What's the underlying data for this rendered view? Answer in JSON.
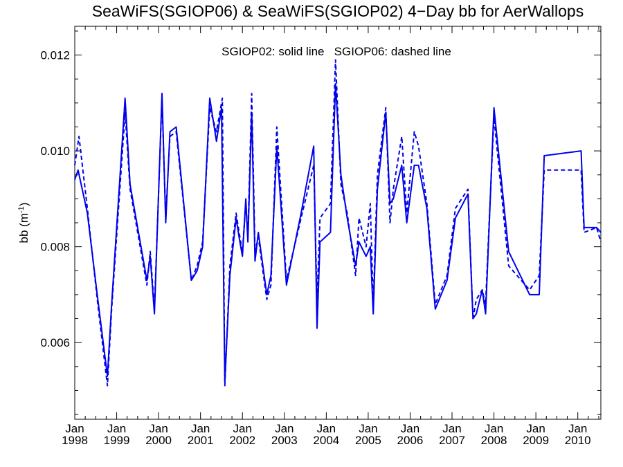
{
  "chart_data": {
    "type": "line",
    "title": "SeaWiFS(SGIOP06) & SeaWiFS(SGIOP02) 4−Day bb for AerWallops",
    "ylabel_main": "bb (m",
    "ylabel_sup": "-1",
    "ylabel_close": ")",
    "xlabel": "",
    "annotation": "SGIOP02: solid line   SGIOP06: dashed line",
    "xlim": [
      1998.0,
      2010.55
    ],
    "ylim": [
      0.0044,
      0.0126
    ],
    "y_ticks": [
      0.006,
      0.008,
      0.01,
      0.012
    ],
    "y_tick_labels": [
      "0.006",
      "0.008",
      "0.010",
      "0.012"
    ],
    "x_ticks": [
      1998,
      1999,
      2000,
      2001,
      2002,
      2003,
      2004,
      2005,
      2006,
      2007,
      2008,
      2009,
      2010
    ],
    "x_tick_month_labels": [
      "Jan",
      "Jan",
      "Jan",
      "Jan",
      "Jan",
      "Jan",
      "Jan",
      "Jan",
      "Jan",
      "Jan",
      "Jan",
      "Jan",
      "Jan"
    ],
    "x_tick_year_labels": [
      "1998",
      "1999",
      "2000",
      "2001",
      "2002",
      "2003",
      "2004",
      "2005",
      "2006",
      "2007",
      "2008",
      "2009",
      "2010"
    ],
    "line_color": "#0000ee",
    "series": [
      {
        "style": "solid",
        "x": [
          1998.0,
          1998.08,
          1998.3,
          1998.55,
          1998.78,
          1998.88,
          1999.2,
          1999.32,
          1999.72,
          1999.8,
          1999.9,
          2000.08,
          2000.17,
          2000.27,
          2000.42,
          2000.78,
          2000.92,
          2001.05,
          2001.22,
          2001.38,
          2001.5,
          2001.58,
          2001.7,
          2001.85,
          2001.92,
          2002.0,
          2002.08,
          2002.13,
          2002.22,
          2002.3,
          2002.38,
          2002.58,
          2002.68,
          2002.82,
          2003.05,
          2003.4,
          2003.7,
          2003.78,
          2003.85,
          2004.1,
          2004.22,
          2004.35,
          2004.5,
          2004.7,
          2004.78,
          2004.95,
          2005.05,
          2005.12,
          2005.22,
          2005.42,
          2005.52,
          2005.6,
          2005.8,
          2005.92,
          2006.1,
          2006.2,
          2006.4,
          2006.6,
          2006.88,
          2007.08,
          2007.38,
          2007.5,
          2007.58,
          2007.72,
          2007.8,
          2007.88,
          2008.0,
          2008.35,
          2008.85,
          2009.08,
          2009.2,
          2010.08,
          2010.15,
          2010.45,
          2010.55
        ],
        "y": [
          0.0094,
          0.0096,
          0.0087,
          0.0069,
          0.0053,
          0.0068,
          0.0111,
          0.0093,
          0.0073,
          0.0078,
          0.0066,
          0.0112,
          0.0085,
          0.0104,
          0.0105,
          0.0073,
          0.0075,
          0.008,
          0.0111,
          0.0102,
          0.0109,
          0.0052,
          0.0074,
          0.0086,
          0.0082,
          0.0078,
          0.009,
          0.0081,
          0.0108,
          0.0077,
          0.0083,
          0.007,
          0.0074,
          0.0101,
          0.0072,
          0.0087,
          0.0101,
          0.0063,
          0.0081,
          0.0083,
          0.0114,
          0.0095,
          0.0086,
          0.0076,
          0.0081,
          0.0078,
          0.008,
          0.0066,
          0.0092,
          0.0108,
          0.0089,
          0.009,
          0.0097,
          0.0085,
          0.0097,
          0.0097,
          0.0088,
          0.0067,
          0.0073,
          0.0086,
          0.0091,
          0.0065,
          0.0066,
          0.0071,
          0.0066,
          0.0083,
          0.0109,
          0.0079,
          0.007,
          0.007,
          0.0099,
          0.01,
          0.0084,
          0.0084,
          0.0083
        ]
      },
      {
        "style": "dashed",
        "x": [
          1998.0,
          1998.1,
          1998.3,
          1998.55,
          1998.78,
          1998.88,
          1999.2,
          1999.32,
          1999.72,
          1999.8,
          1999.9,
          2000.08,
          2000.17,
          2000.27,
          2000.42,
          2000.78,
          2000.92,
          2001.05,
          2001.22,
          2001.38,
          2001.52,
          2001.58,
          2001.7,
          2001.85,
          2001.92,
          2002.0,
          2002.08,
          2002.13,
          2002.22,
          2002.3,
          2002.38,
          2002.58,
          2002.68,
          2002.82,
          2003.05,
          2003.4,
          2003.7,
          2003.78,
          2003.85,
          2004.1,
          2004.22,
          2004.35,
          2004.5,
          2004.7,
          2004.78,
          2004.95,
          2005.05,
          2005.12,
          2005.22,
          2005.42,
          2005.52,
          2005.6,
          2005.8,
          2005.92,
          2006.1,
          2006.2,
          2006.4,
          2006.6,
          2006.88,
          2007.08,
          2007.38,
          2007.5,
          2007.58,
          2007.72,
          2007.8,
          2007.88,
          2008.0,
          2008.35,
          2008.85,
          2009.08,
          2009.2,
          2010.08,
          2010.15,
          2010.45,
          2010.55
        ],
        "y": [
          0.0097,
          0.0103,
          0.0088,
          0.0068,
          0.0051,
          0.0067,
          0.0108,
          0.0092,
          0.0072,
          0.0079,
          0.0067,
          0.0111,
          0.0086,
          0.0103,
          0.0104,
          0.0073,
          0.0076,
          0.0081,
          0.0109,
          0.0104,
          0.0111,
          0.0051,
          0.0076,
          0.0087,
          0.0083,
          0.0079,
          0.0089,
          0.0082,
          0.0112,
          0.0079,
          0.0082,
          0.0069,
          0.0072,
          0.0105,
          0.0073,
          0.0086,
          0.0097,
          0.0069,
          0.0086,
          0.0089,
          0.0119,
          0.0093,
          0.0087,
          0.0074,
          0.0086,
          0.008,
          0.0089,
          0.0068,
          0.0095,
          0.0109,
          0.0085,
          0.0092,
          0.0103,
          0.0087,
          0.0104,
          0.0101,
          0.0089,
          0.0068,
          0.0074,
          0.0088,
          0.0092,
          0.0065,
          0.0069,
          0.0071,
          0.0068,
          0.0084,
          0.0107,
          0.0076,
          0.0071,
          0.0074,
          0.0096,
          0.0096,
          0.0083,
          0.0084,
          0.0081
        ]
      }
    ]
  }
}
